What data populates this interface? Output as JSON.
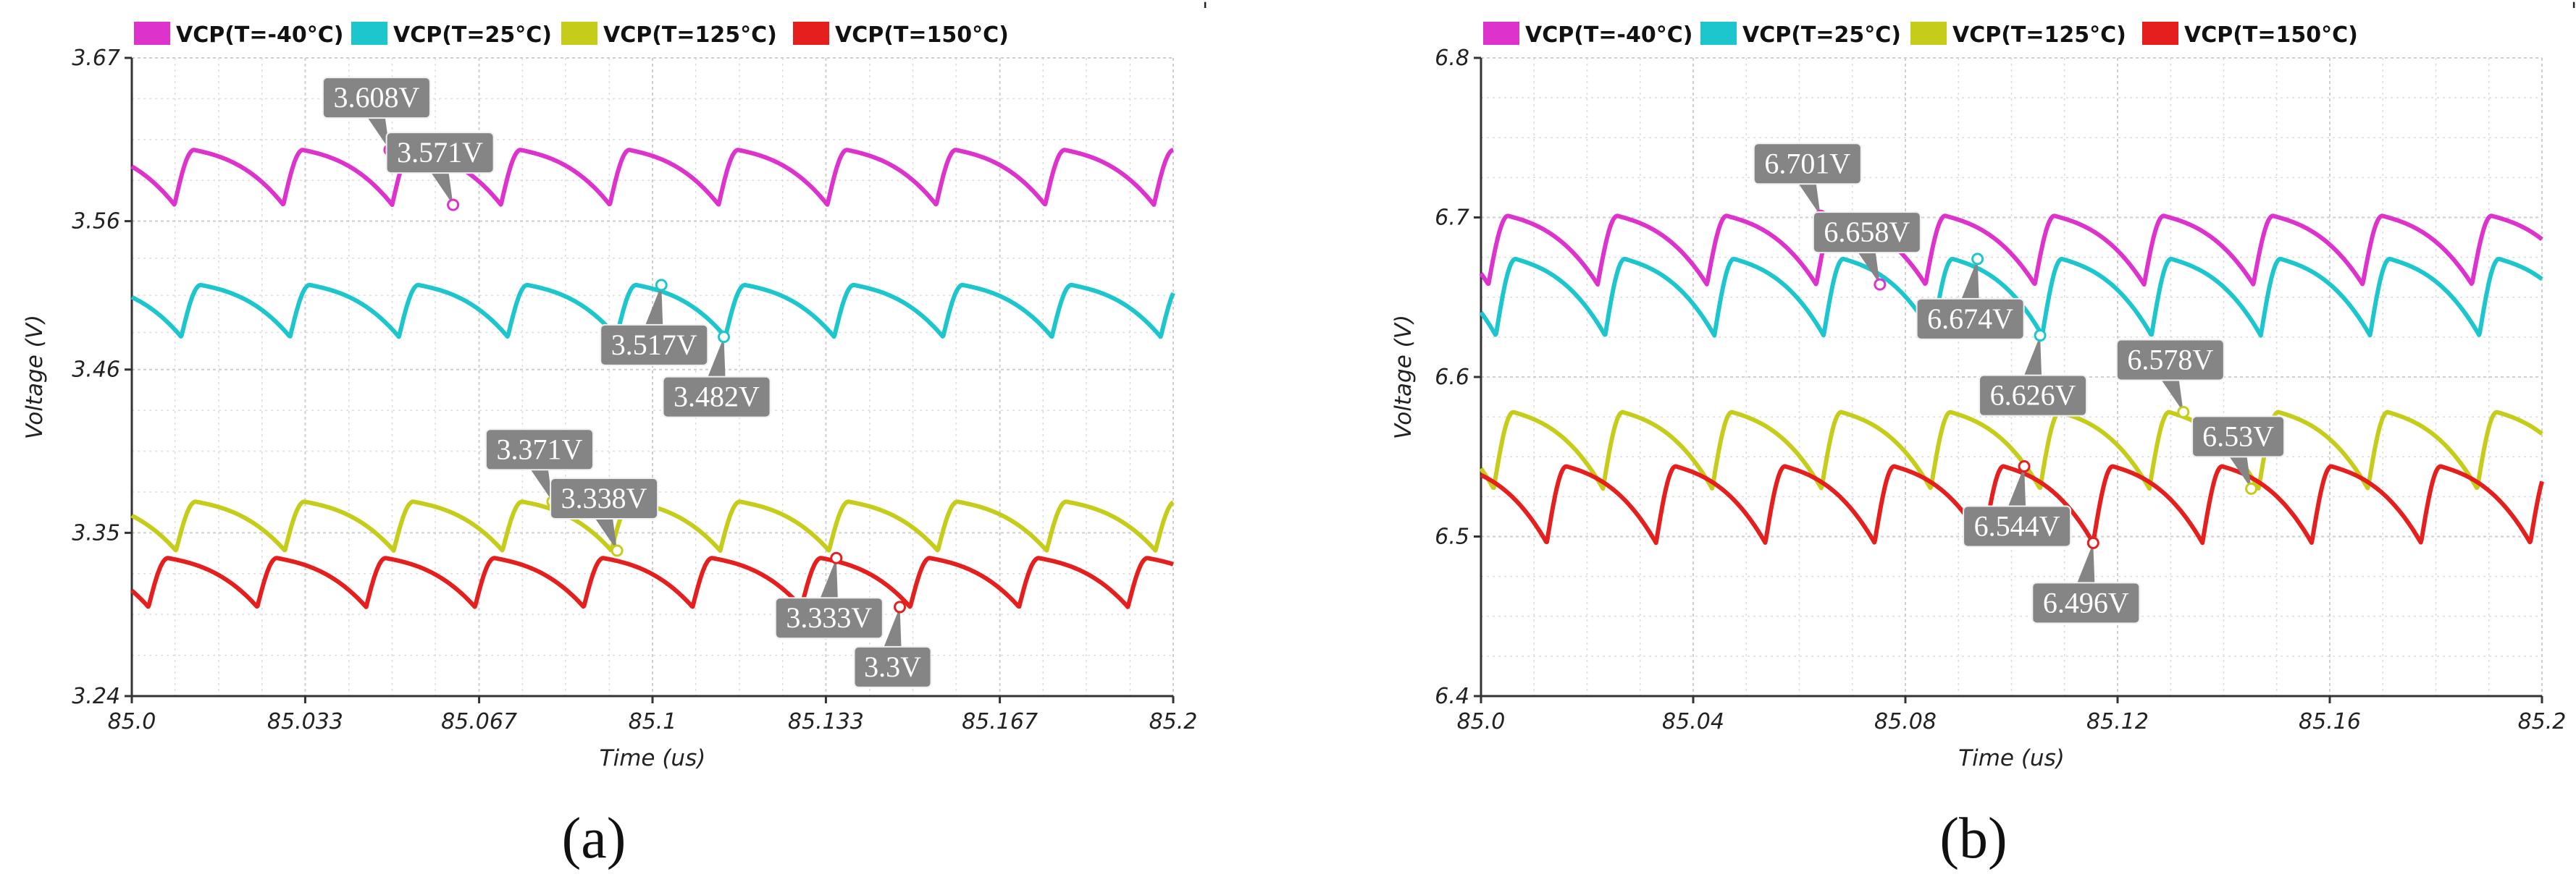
{
  "chart_data": [
    {
      "id": "a",
      "type": "line",
      "panel_label": "(a)",
      "xlabel": "Time (us)",
      "ylabel": "Voltage (V)",
      "xlim": [
        85.0,
        85.2
      ],
      "ylim": [
        3.24,
        3.67
      ],
      "x_ticks": [
        "85.0",
        "85.033",
        "85.067",
        "85.1",
        "85.133",
        "85.167",
        "85.2"
      ],
      "x_tick_values": [
        85.0,
        85.0333,
        85.0667,
        85.1,
        85.1333,
        85.1667,
        85.2
      ],
      "y_ticks": [
        "3.24",
        "3.35",
        "3.46",
        "3.56",
        "3.67"
      ],
      "y_tick_values": [
        3.24,
        3.35,
        3.46,
        3.56,
        3.67
      ],
      "minor_x": [
        85.0083,
        85.0167,
        85.025,
        85.0417,
        85.05,
        85.0583,
        85.075,
        85.0833,
        85.0917,
        85.1083,
        85.1167,
        85.125,
        85.1417,
        85.15,
        85.1583,
        85.175,
        85.1833,
        85.1917
      ],
      "minor_y": [
        3.2675,
        3.295,
        3.3225,
        3.3775,
        3.405,
        3.4325,
        3.485,
        3.51,
        3.535,
        3.5875,
        3.615,
        3.6425
      ],
      "series": [
        {
          "name": "VCP(T=-40°C)",
          "color": "#dd33cc",
          "min": 3.571,
          "max": 3.608,
          "period": 0.0209,
          "phase": 85.0082
        },
        {
          "name": "VCP(T=25°C)",
          "color": "#1cc6cc",
          "min": 3.482,
          "max": 3.517,
          "period": 0.0209,
          "phase": 85.0095
        },
        {
          "name": "VCP(T=125°C)",
          "color": "#c6cc1a",
          "min": 3.338,
          "max": 3.371,
          "period": 0.0209,
          "phase": 85.0085
        },
        {
          "name": "VCP(T=150°C)",
          "color": "#e51e1e",
          "min": 3.3,
          "max": 3.333,
          "period": 0.0209,
          "phase": 85.0032
        }
      ],
      "annotations": [
        {
          "label": "3.608V",
          "x": 85.0495,
          "y": 3.608,
          "color": "#dd33cc",
          "side": "up"
        },
        {
          "label": "3.571V",
          "x": 85.0617,
          "y": 3.571,
          "color": "#dd33cc",
          "side": "up"
        },
        {
          "label": "3.517V",
          "x": 85.1017,
          "y": 3.517,
          "color": "#1cc6cc",
          "side": "down"
        },
        {
          "label": "3.482V",
          "x": 85.1137,
          "y": 3.482,
          "color": "#1cc6cc",
          "side": "down"
        },
        {
          "label": "3.371V",
          "x": 85.0808,
          "y": 3.371,
          "color": "#c6cc1a",
          "side": "up"
        },
        {
          "label": "3.338V",
          "x": 85.0932,
          "y": 3.338,
          "color": "#c6cc1a",
          "side": "up"
        },
        {
          "label": "3.333V",
          "x": 85.1353,
          "y": 3.333,
          "color": "#e51e1e",
          "side": "down"
        },
        {
          "label": "3.3V",
          "x": 85.1475,
          "y": 3.3,
          "color": "#e51e1e",
          "side": "down"
        }
      ]
    },
    {
      "id": "b",
      "type": "line",
      "panel_label": "(b)",
      "xlabel": "Time (us)",
      "ylabel": "Voltage (V)",
      "xlim": [
        85.0,
        85.2
      ],
      "ylim": [
        6.4,
        6.8
      ],
      "x_ticks": [
        "85.0",
        "85.04",
        "85.08",
        "85.12",
        "85.16",
        "85.2"
      ],
      "x_tick_values": [
        85.0,
        85.04,
        85.08,
        85.12,
        85.16,
        85.2
      ],
      "y_ticks": [
        "6.4",
        "6.5",
        "6.6",
        "6.7",
        "6.8"
      ],
      "y_tick_values": [
        6.4,
        6.5,
        6.6,
        6.7,
        6.8
      ],
      "minor_x": [
        85.01,
        85.02,
        85.03,
        85.05,
        85.06,
        85.07,
        85.09,
        85.1,
        85.11,
        85.13,
        85.14,
        85.15,
        85.17,
        85.18,
        85.19
      ],
      "minor_y": [
        6.425,
        6.45,
        6.475,
        6.525,
        6.55,
        6.575,
        6.625,
        6.65,
        6.675,
        6.725,
        6.75,
        6.775
      ],
      "series": [
        {
          "name": "VCP(T=-40°C)",
          "color": "#dd33cc",
          "min": 6.658,
          "max": 6.701,
          "period": 0.0206,
          "phase": 85.0014
        },
        {
          "name": "VCP(T=25°C)",
          "color": "#1cc6cc",
          "min": 6.626,
          "max": 6.674,
          "period": 0.0206,
          "phase": 85.0028
        },
        {
          "name": "VCP(T=125°C)",
          "color": "#c6cc1a",
          "min": 6.53,
          "max": 6.578,
          "period": 0.0206,
          "phase": 85.0024
        },
        {
          "name": "VCP(T=150°C)",
          "color": "#e51e1e",
          "min": 6.496,
          "max": 6.544,
          "period": 0.0206,
          "phase": 85.0124
        }
      ],
      "annotations": [
        {
          "label": "6.701V",
          "x": 85.064,
          "y": 6.701,
          "color": "#dd33cc",
          "side": "up"
        },
        {
          "label": "6.658V",
          "x": 85.0752,
          "y": 6.658,
          "color": "#dd33cc",
          "side": "up"
        },
        {
          "label": "6.674V",
          "x": 85.0936,
          "y": 6.674,
          "color": "#1cc6cc",
          "side": "down"
        },
        {
          "label": "6.626V",
          "x": 85.1054,
          "y": 6.626,
          "color": "#1cc6cc",
          "side": "down"
        },
        {
          "label": "6.578V",
          "x": 85.1324,
          "y": 6.578,
          "color": "#c6cc1a",
          "side": "up"
        },
        {
          "label": "6.53V",
          "x": 85.1452,
          "y": 6.53,
          "color": "#c6cc1a",
          "side": "up"
        },
        {
          "label": "6.544V",
          "x": 85.1024,
          "y": 6.544,
          "color": "#e51e1e",
          "side": "down"
        },
        {
          "label": "6.496V",
          "x": 85.1154,
          "y": 6.496,
          "color": "#e51e1e",
          "side": "down"
        }
      ]
    }
  ]
}
